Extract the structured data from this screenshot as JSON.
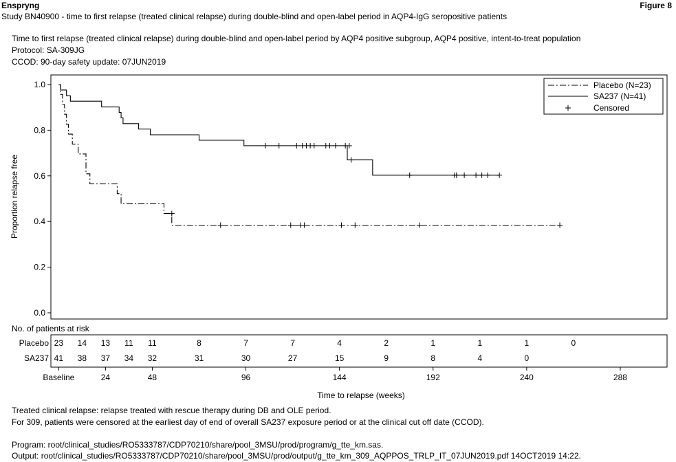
{
  "header": {
    "product": "Enspryng",
    "figure_label": "Figure 8",
    "study_line": "Study BN40900 - time to first relapse (treated clinical relapse) during double-blind and open-label period in AQP4-IgG seropositive patients"
  },
  "subheader": {
    "line1": "Time to first relapse (treated clinical relapse) during double-blind and open-label period by AQP4 positive subgroup, AQP4 positive, intent-to-treat population",
    "line2": "Protocol: SA-309JG",
    "line3": "CCOD: 90-day safety update: 07JUN2019"
  },
  "footer": {
    "note1": "Treated clinical relapse: relapse treated with rescue therapy during DB and OLE period.",
    "note2": "For 309, patients were censored at the earliest day of end of overall SA237 exposure period or at the clinical cut off date (CCOD).",
    "program": "Program: root/clinical_studies/RO5333787/CDP70210/share/pool_3MSU/prod/program/g_tte_km.sas.",
    "output": "Output: root/clinical_studies/RO5333787/CDP70210/share/pool_3MSU/prod/output/g_tte_km_309_AQPPOS_TRLP_IT_07JUN2019.pdf 14OCT2019 14:22."
  },
  "chart_data": {
    "type": "line",
    "subtype": "kaplan-meier step",
    "xlabel": "Time to relapse (weeks)",
    "ylabel": "Proportion relapse free",
    "xlim": [
      -4,
      312
    ],
    "ylim": [
      0,
      1.0
    ],
    "x_ticks": [
      0,
      24,
      48,
      96,
      144,
      192,
      240,
      288
    ],
    "x_tick_labels": [
      "Baseline",
      "24",
      "48",
      "96",
      "144",
      "192",
      "240",
      "288"
    ],
    "y_ticks": [
      0.0,
      0.2,
      0.4,
      0.6,
      0.8,
      1.0
    ],
    "y_tick_labels": [
      "0.0",
      "0.2",
      "0.4",
      "0.6",
      "0.8",
      "1.0"
    ],
    "legend_position": "top-right",
    "legend": [
      {
        "label": "Placebo (N=23)",
        "style": "dash-dot"
      },
      {
        "label": "SA237 (N=41)",
        "style": "solid"
      },
      {
        "label": "Censored",
        "style": "plus-marker"
      }
    ],
    "series": [
      {
        "name": "Placebo (N=23)",
        "line_style": "dash-dot",
        "steps": [
          [
            0,
            1.0
          ],
          [
            1,
            0.957
          ],
          [
            2,
            0.913
          ],
          [
            3,
            0.87
          ],
          [
            4,
            0.826
          ],
          [
            5,
            0.783
          ],
          [
            7,
            0.739
          ],
          [
            10,
            0.696
          ],
          [
            14,
            0.609
          ],
          [
            16,
            0.565
          ],
          [
            30,
            0.522
          ],
          [
            32,
            0.478
          ],
          [
            54,
            0.435
          ],
          [
            58,
            0.384
          ],
          [
            257,
            0.384
          ]
        ],
        "censored": [
          [
            58,
            0.435
          ],
          [
            83,
            0.384
          ],
          [
            119,
            0.384
          ],
          [
            124,
            0.384
          ],
          [
            126,
            0.384
          ],
          [
            145,
            0.384
          ],
          [
            152,
            0.384
          ],
          [
            185,
            0.384
          ],
          [
            257,
            0.384
          ]
        ]
      },
      {
        "name": "SA237 (N=41)",
        "line_style": "solid",
        "steps": [
          [
            0,
            1.0
          ],
          [
            1,
            0.976
          ],
          [
            4,
            0.951
          ],
          [
            6,
            0.927
          ],
          [
            22,
            0.902
          ],
          [
            31,
            0.878
          ],
          [
            32,
            0.854
          ],
          [
            33,
            0.829
          ],
          [
            41,
            0.805
          ],
          [
            47,
            0.78
          ],
          [
            72,
            0.756
          ],
          [
            95,
            0.732
          ],
          [
            148,
            0.67
          ],
          [
            161,
            0.603
          ],
          [
            226,
            0.603
          ]
        ],
        "censored": [
          [
            106,
            0.732
          ],
          [
            113,
            0.732
          ],
          [
            122,
            0.732
          ],
          [
            125,
            0.732
          ],
          [
            127,
            0.732
          ],
          [
            129,
            0.732
          ],
          [
            131,
            0.732
          ],
          [
            137,
            0.732
          ],
          [
            139,
            0.732
          ],
          [
            142,
            0.732
          ],
          [
            147,
            0.732
          ],
          [
            149,
            0.732
          ],
          [
            150,
            0.67
          ],
          [
            180,
            0.603
          ],
          [
            203,
            0.603
          ],
          [
            204,
            0.603
          ],
          [
            208,
            0.603
          ],
          [
            214,
            0.603
          ],
          [
            217,
            0.603
          ],
          [
            220,
            0.603
          ],
          [
            226,
            0.603
          ]
        ]
      }
    ],
    "risk_table": {
      "title": "No. of patients at risk",
      "times": [
        0,
        12,
        24,
        36,
        48,
        72,
        96,
        120,
        144,
        168,
        192,
        216,
        240,
        264
      ],
      "rows": [
        {
          "label": "Placebo",
          "values": [
            "23",
            "14",
            "13",
            "11",
            "11",
            "8",
            "7",
            "7",
            "4",
            "2",
            "1",
            "1",
            "1",
            "0"
          ]
        },
        {
          "label": "SA237",
          "values": [
            "41",
            "38",
            "37",
            "34",
            "32",
            "31",
            "30",
            "27",
            "15",
            "9",
            "8",
            "4",
            "0",
            ""
          ]
        }
      ]
    }
  }
}
